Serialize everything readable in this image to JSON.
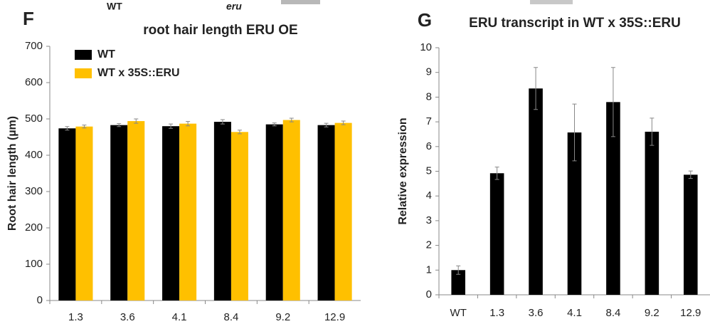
{
  "fragments": [
    "WT",
    "eru"
  ],
  "chart_data": [
    {
      "type": "bar",
      "panel_label": "F",
      "title": "root hair length ERU OE",
      "y_label": "Root hair length (µm)",
      "categories": [
        "1.3",
        "3.6",
        "4.1",
        "8.4",
        "9.2",
        "12.9"
      ],
      "series": [
        {
          "name": "WT",
          "color": "#000000",
          "values": [
            474,
            483,
            480,
            492,
            485,
            483
          ],
          "errors": [
            5,
            4,
            6,
            6,
            4,
            5
          ]
        },
        {
          "name": "WT x 35S::ERU",
          "color": "#ffc000",
          "values": [
            479,
            494,
            487,
            464,
            497,
            489
          ],
          "errors": [
            4,
            6,
            6,
            5,
            5,
            5
          ]
        }
      ],
      "ylim": [
        0,
        700
      ],
      "yticks": [
        0,
        100,
        200,
        300,
        400,
        500,
        600,
        700
      ],
      "grid": false,
      "legend": "top-left"
    },
    {
      "type": "bar",
      "panel_label": "G",
      "title": "ERU transcript in WT x 35S::ERU",
      "y_label": "Relative expression",
      "categories": [
        "WT",
        "1.3",
        "3.6",
        "4.1",
        "8.4",
        "9.2",
        "12.9"
      ],
      "series": [
        {
          "color": "#000000",
          "values": [
            1,
            4.92,
            8.35,
            6.57,
            7.8,
            6.6,
            4.86
          ],
          "errors": [
            0.17,
            0.25,
            0.85,
            1.15,
            1.4,
            0.55,
            0.15
          ]
        }
      ],
      "ylim": [
        0,
        10
      ],
      "yticks": [
        0,
        1,
        2,
        3,
        4,
        5,
        6,
        7,
        8,
        9,
        10
      ],
      "grid": false
    }
  ]
}
